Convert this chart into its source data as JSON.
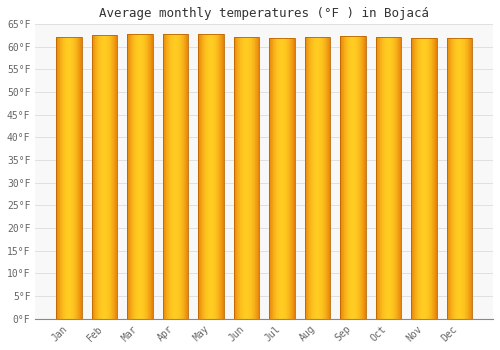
{
  "title": "Average monthly temperatures (°F ) in Bojacá",
  "months": [
    "Jan",
    "Feb",
    "Mar",
    "Apr",
    "May",
    "Jun",
    "Jul",
    "Aug",
    "Sep",
    "Oct",
    "Nov",
    "Dec"
  ],
  "values": [
    62.1,
    62.6,
    62.8,
    62.8,
    62.8,
    62.2,
    61.9,
    62.1,
    62.4,
    62.1,
    61.9,
    61.8
  ],
  "ylim": [
    0,
    65
  ],
  "yticks": [
    0,
    5,
    10,
    15,
    20,
    25,
    30,
    35,
    40,
    45,
    50,
    55,
    60,
    65
  ],
  "ytick_labels": [
    "0°F",
    "5°F",
    "10°F",
    "15°F",
    "20°F",
    "25°F",
    "30°F",
    "35°F",
    "40°F",
    "45°F",
    "50°F",
    "55°F",
    "60°F",
    "65°F"
  ],
  "bar_color_edge": "#E8820A",
  "bar_color_mid": "#FFCC22",
  "background_color": "#FFFFFF",
  "plot_bg_color": "#F8F8F8",
  "grid_color": "#E0E0E0",
  "title_fontsize": 9,
  "tick_fontsize": 7,
  "figsize": [
    5.0,
    3.5
  ],
  "dpi": 100
}
